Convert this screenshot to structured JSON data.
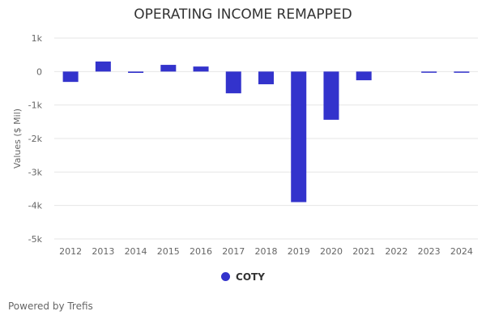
{
  "chart_data": {
    "type": "bar",
    "title": "OPERATING INCOME REMAPPED",
    "ylabel": "Values ($ Mil)",
    "xlabel": "",
    "categories": [
      "2012",
      "2013",
      "2014",
      "2015",
      "2016",
      "2017",
      "2018",
      "2019",
      "2020",
      "2021",
      "2022",
      "2023",
      "2024"
    ],
    "series": [
      {
        "name": "COTY",
        "values": [
          -310,
          300,
          -40,
          200,
          150,
          -650,
          -380,
          -3900,
          -1440,
          -260,
          0,
          -20,
          -20
        ],
        "color": "#3333cc"
      }
    ],
    "ylim": [
      -5000,
      1000
    ],
    "yticks": [
      1000,
      0,
      -1000,
      -2000,
      -3000,
      -4000,
      -5000
    ],
    "ytick_labels": [
      "1k",
      "0",
      "-1k",
      "-2k",
      "-3k",
      "-4k",
      "-5k"
    ],
    "grid": true,
    "legend_position": "bottom"
  },
  "footer": {
    "credit": "Powered by Trefis"
  }
}
